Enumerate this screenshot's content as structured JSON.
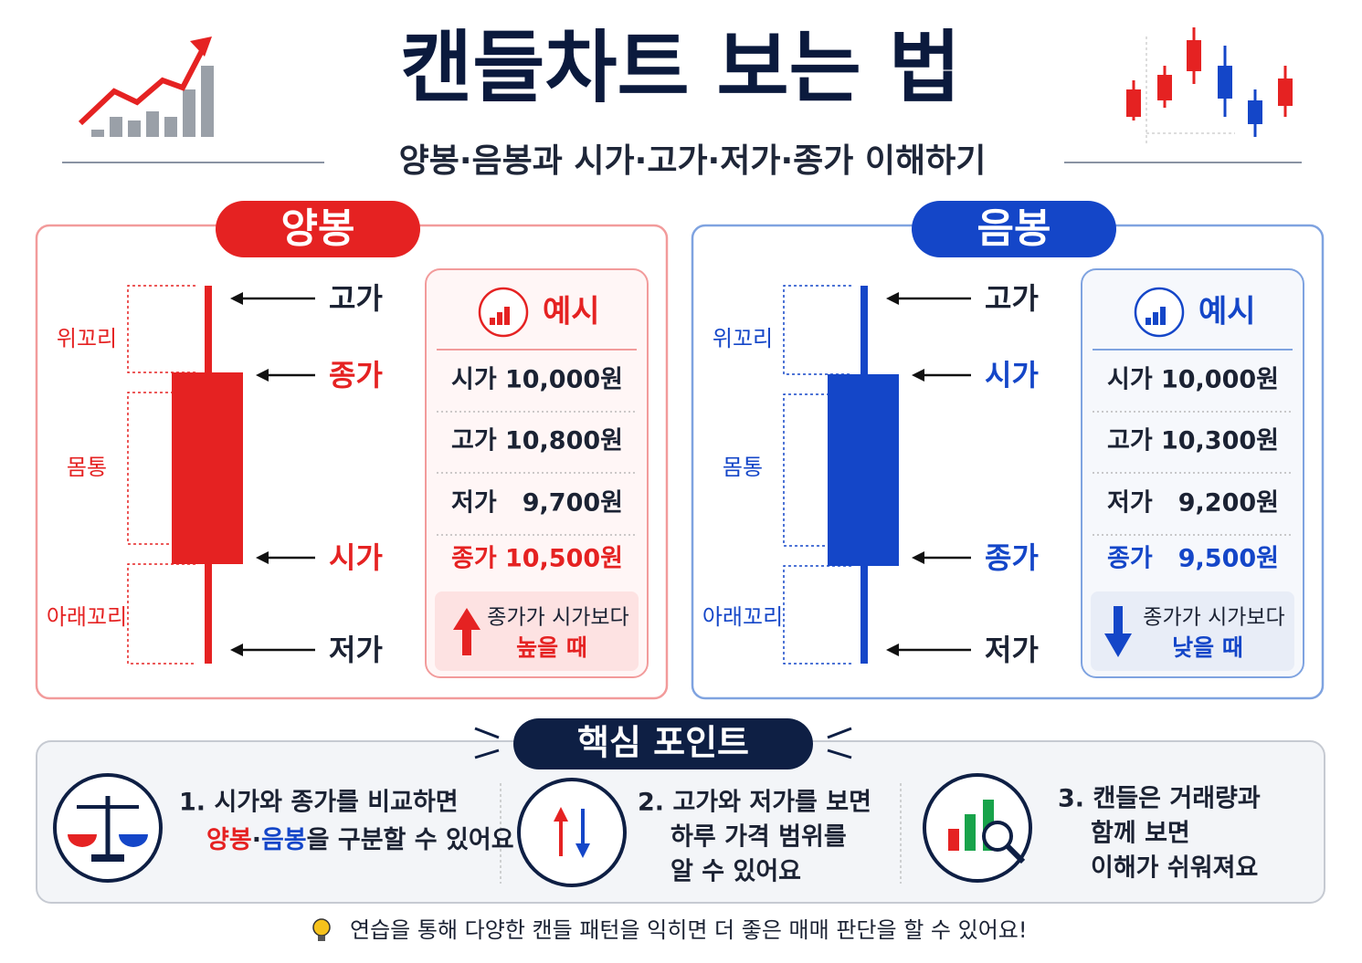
{
  "header": {
    "title": "캔들차트 보는 법",
    "subtitle": "양봉·음봉과 시가·고가·저가·종가 이해하기"
  },
  "panels": [
    {
      "badge": "양봉",
      "tail_labels": [
        "위꼬리",
        "몸통",
        "아래꼬리"
      ],
      "price_labels": [
        "고가",
        "종가",
        "시가",
        "저가"
      ],
      "example": {
        "title": "예시",
        "rows": [
          [
            "시가",
            "10,000원"
          ],
          [
            "고가",
            "10,800원"
          ],
          [
            "저가",
            "9,700원"
          ],
          [
            "종가",
            "10,500원"
          ]
        ],
        "note": [
          "종가가 시가보다",
          "높을 때"
        ]
      }
    },
    {
      "badge": "음봉",
      "tail_labels": [
        "위꼬리",
        "몸통",
        "아래꼬리"
      ],
      "price_labels": [
        "고가",
        "시가",
        "종가",
        "저가"
      ],
      "example": {
        "title": "예시",
        "rows": [
          [
            "시가",
            "10,000원"
          ],
          [
            "고가",
            "10,300원"
          ],
          [
            "저가",
            "9,200원"
          ],
          [
            "종가",
            "9,500원"
          ]
        ],
        "note": [
          "종가가 시가보다",
          "낮을 때"
        ]
      }
    }
  ],
  "key_points": {
    "title": "핵심 포인트",
    "items": [
      {
        "lines": [
          "1. 시가와 종가를 비교하면"
        ],
        "parts": [
          "양봉",
          "·",
          "음봉",
          "을 구분할 수 있어요"
        ]
      },
      {
        "lines": [
          "2. 고가와 저가를 보면",
          "하루 가격 범위를",
          "알 수 있어요"
        ]
      },
      {
        "lines": [
          "3. 캔들은 거래량과",
          "함께 보면",
          "이해가 쉬워져요"
        ]
      }
    ]
  },
  "footer": "연습을 통해 다양한 캔들 패턴을 익히면 더 좋은 매매 판단을 할 수 있어요!"
}
